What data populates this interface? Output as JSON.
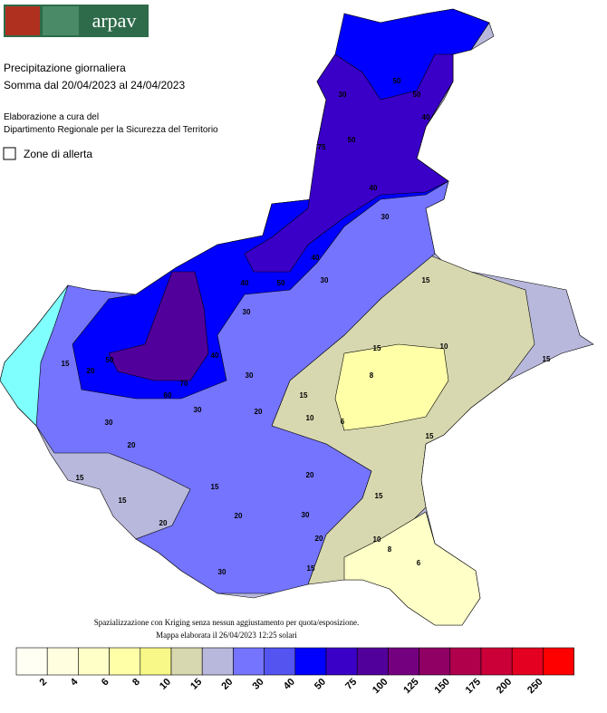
{
  "header": {
    "logo_text": "arpav"
  },
  "title": {
    "line1": "Precipitazione giornaliera",
    "line2": "Somma dal 20/04/2023 al 24/04/2023"
  },
  "credits": {
    "line1": "Elaborazione a cura del",
    "line2": "Dipartimento Regionale per la Sicurezza del Territorio"
  },
  "layer_toggle": "Zone di allerta",
  "map": {
    "contour_labels": [
      75,
      50,
      40,
      50,
      30,
      50,
      40,
      30,
      40,
      30,
      50,
      40,
      30,
      15,
      15,
      10,
      8,
      10,
      6,
      15,
      20,
      15,
      30,
      40,
      60,
      70,
      50,
      20,
      15,
      30,
      30,
      20,
      15,
      15,
      20,
      15,
      20,
      30,
      20,
      20,
      15,
      10,
      8,
      6,
      15,
      30,
      15
    ]
  },
  "notes": [
    "Spazializzazione con Kriging senza nessun aggiustamento per quota/esposizione.",
    "Mappa elaborata il 26/04/2023 12:25 solari"
  ],
  "legend": {
    "colors": [
      "#fffff4",
      "#ffffe0",
      "#ffffc8",
      "#ffffa8",
      "#f8f888",
      "#d8d8b0",
      "#b8b8dc",
      "#7474ff",
      "#5454f0",
      "#0000ff",
      "#3a00c8",
      "#52009c",
      "#740080",
      "#900064",
      "#b0004c",
      "#cc0038",
      "#e40020",
      "#ff0000"
    ],
    "labels": [
      2,
      4,
      6,
      8,
      10,
      15,
      20,
      30,
      40,
      50,
      75,
      100,
      125,
      150,
      175,
      200,
      250
    ]
  }
}
